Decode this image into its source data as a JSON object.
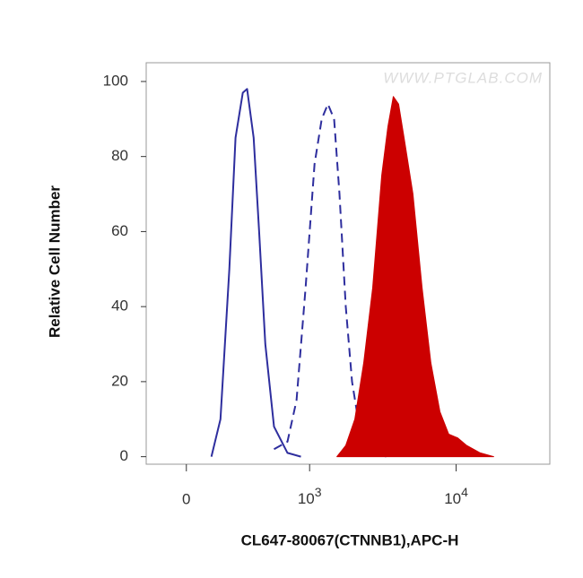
{
  "chart_data": {
    "type": "histogram-overlay",
    "watermark": "WWW.PTGLAB.COM",
    "x_label": "CL647-80067(CTNNB1),APC-H",
    "y_label": "Relative Cell Number",
    "xscale": "biexponential",
    "xlim": [
      -200,
      43000
    ],
    "xticks": [
      0,
      {
        "value": 1000,
        "label": "10",
        "exponent": "3"
      },
      {
        "value": 10000,
        "label": "10",
        "exponent": "4"
      }
    ],
    "ylim": [
      -2,
      105
    ],
    "yticks": [
      0,
      20,
      40,
      60,
      80,
      100
    ],
    "series": [
      {
        "color": "#2e2e9e",
        "style": "solid",
        "fill": false,
        "x": [
          120,
          167,
          216,
          253,
          299,
          328,
          375,
          417,
          469,
          549,
          693,
          868
        ],
        "values": [
          0,
          10,
          50,
          85,
          97,
          98,
          85,
          60,
          30,
          8,
          1,
          0
        ]
      },
      {
        "color": "#2e2e9e",
        "style": "dashed",
        "fill": false,
        "x": [
          549,
          693,
          806,
          936,
          1083,
          1216,
          1342,
          1482,
          1614,
          1782,
          1968,
          2206,
          2540,
          2920,
          3360
        ],
        "values": [
          2,
          4,
          15,
          45,
          78,
          90,
          94,
          90,
          70,
          40,
          20,
          8,
          4,
          1,
          0
        ]
      },
      {
        "color": "#cc0000",
        "style": "solid",
        "fill": true,
        "x": [
          1548,
          1782,
          2055,
          2364,
          2721,
          3132,
          3450,
          3756,
          4080,
          4440,
          5100,
          5880,
          6750,
          7770,
          8910,
          10260,
          11790,
          14550,
          17940
        ],
        "values": [
          0,
          3,
          10,
          25,
          45,
          75,
          88,
          96,
          94,
          85,
          70,
          45,
          25,
          12,
          6,
          5,
          3,
          1,
          0
        ]
      }
    ]
  }
}
